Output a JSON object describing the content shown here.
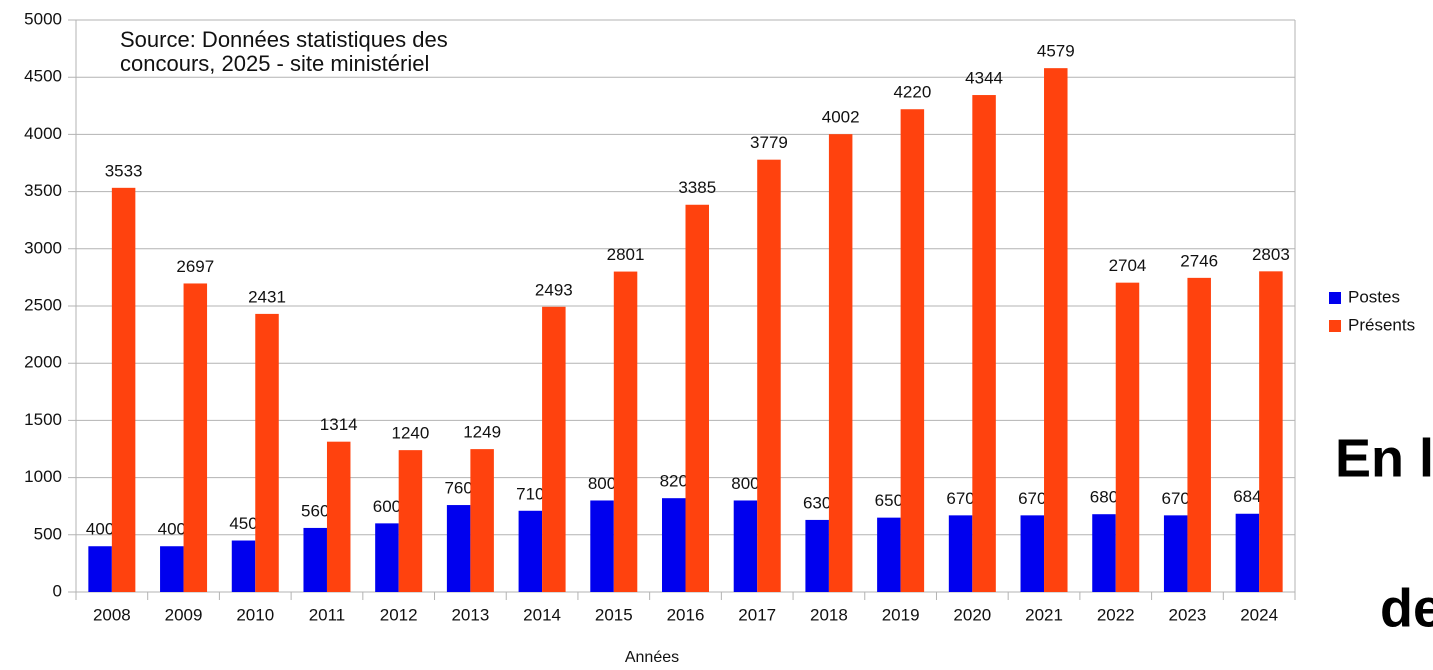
{
  "chart_data": {
    "type": "bar",
    "annotation": [
      "Source: Données statistiques des",
      "concours, 2025 - site ministériel"
    ],
    "x_label": "Années",
    "categories": [
      "2008",
      "2009",
      "2010",
      "2011",
      "2012",
      "2013",
      "2014",
      "2015",
      "2016",
      "2017",
      "2018",
      "2019",
      "2020",
      "2021",
      "2022",
      "2023",
      "2024"
    ],
    "series": [
      {
        "name": "Postes",
        "color": "#0000ee",
        "values": [
          400,
          400,
          450,
          560,
          600,
          760,
          710,
          800,
          820,
          800,
          630,
          650,
          670,
          670,
          680,
          670,
          684
        ]
      },
      {
        "name": "Présents",
        "color": "#ff420e",
        "values": [
          3533,
          2697,
          2431,
          1314,
          1240,
          1249,
          2493,
          2801,
          3385,
          3779,
          4002,
          4220,
          4344,
          4579,
          2704,
          2746,
          2803
        ]
      }
    ],
    "ylim": [
      0,
      5000
    ],
    "yticks": [
      0,
      500,
      1000,
      1500,
      2000,
      2500,
      3000,
      3500,
      4000,
      4500,
      5000
    ],
    "grid": true,
    "legend": "right"
  },
  "overlay": {
    "texts": [
      "En l",
      "de"
    ]
  }
}
